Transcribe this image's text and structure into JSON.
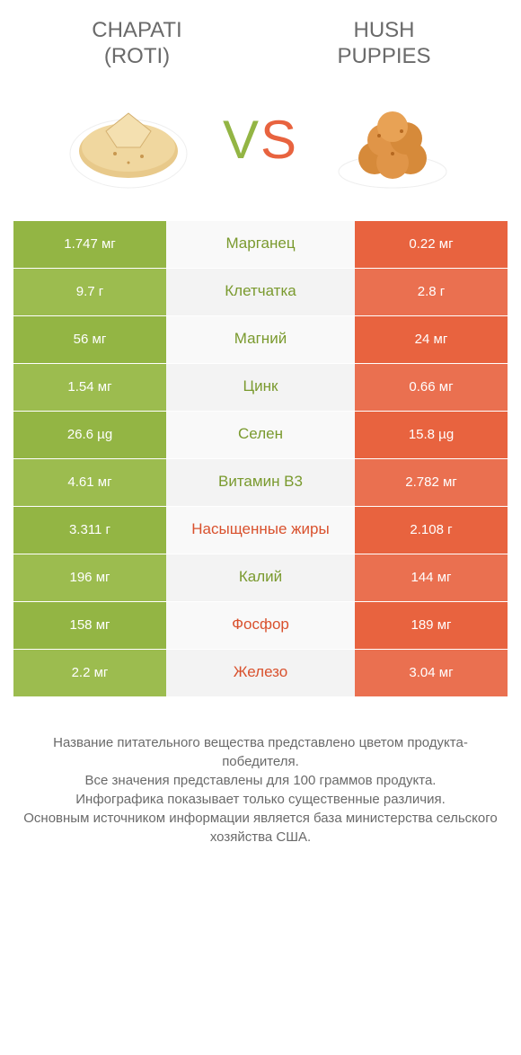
{
  "left_product": {
    "line1": "Chapati",
    "line2": "(roti)"
  },
  "right_product": {
    "line1": "Hush",
    "line2": "Puppies"
  },
  "vs": {
    "v": "V",
    "s": "S"
  },
  "colors": {
    "green": "#93b544",
    "green_alt": "#9cbc4f",
    "orange": "#e8633f",
    "orange_alt": "#ea7050",
    "mid_bg": "#f9f9f9",
    "mid_bg_alt": "#f3f3f3",
    "label_green": "#7a9a2e",
    "label_orange": "#d9512d"
  },
  "rows": [
    {
      "nutrient": "Марганец",
      "left": "1.747 мг",
      "right": "0.22 мг",
      "winner": "left"
    },
    {
      "nutrient": "Клетчатка",
      "left": "9.7 г",
      "right": "2.8 г",
      "winner": "left"
    },
    {
      "nutrient": "Магний",
      "left": "56 мг",
      "right": "24 мг",
      "winner": "left"
    },
    {
      "nutrient": "Цинк",
      "left": "1.54 мг",
      "right": "0.66 мг",
      "winner": "left"
    },
    {
      "nutrient": "Селен",
      "left": "26.6 µg",
      "right": "15.8 µg",
      "winner": "left"
    },
    {
      "nutrient": "Витамин B3",
      "left": "4.61 мг",
      "right": "2.782 мг",
      "winner": "left"
    },
    {
      "nutrient": "Насыщенные жиры",
      "left": "3.311 г",
      "right": "2.108 г",
      "winner": "right"
    },
    {
      "nutrient": "Калий",
      "left": "196 мг",
      "right": "144 мг",
      "winner": "left"
    },
    {
      "nutrient": "Фосфор",
      "left": "158 мг",
      "right": "189 мг",
      "winner": "right"
    },
    {
      "nutrient": "Железо",
      "left": "2.2 мг",
      "right": "3.04 мг",
      "winner": "right"
    }
  ],
  "footer": {
    "l1": "Название питательного вещества представлено цветом продукта-победителя.",
    "l2": "Все значения представлены для 100 граммов продукта.",
    "l3": "Инфографика показывает только существенные различия.",
    "l4": "Основным источником информации является база министерства сельского хозяйства США."
  }
}
